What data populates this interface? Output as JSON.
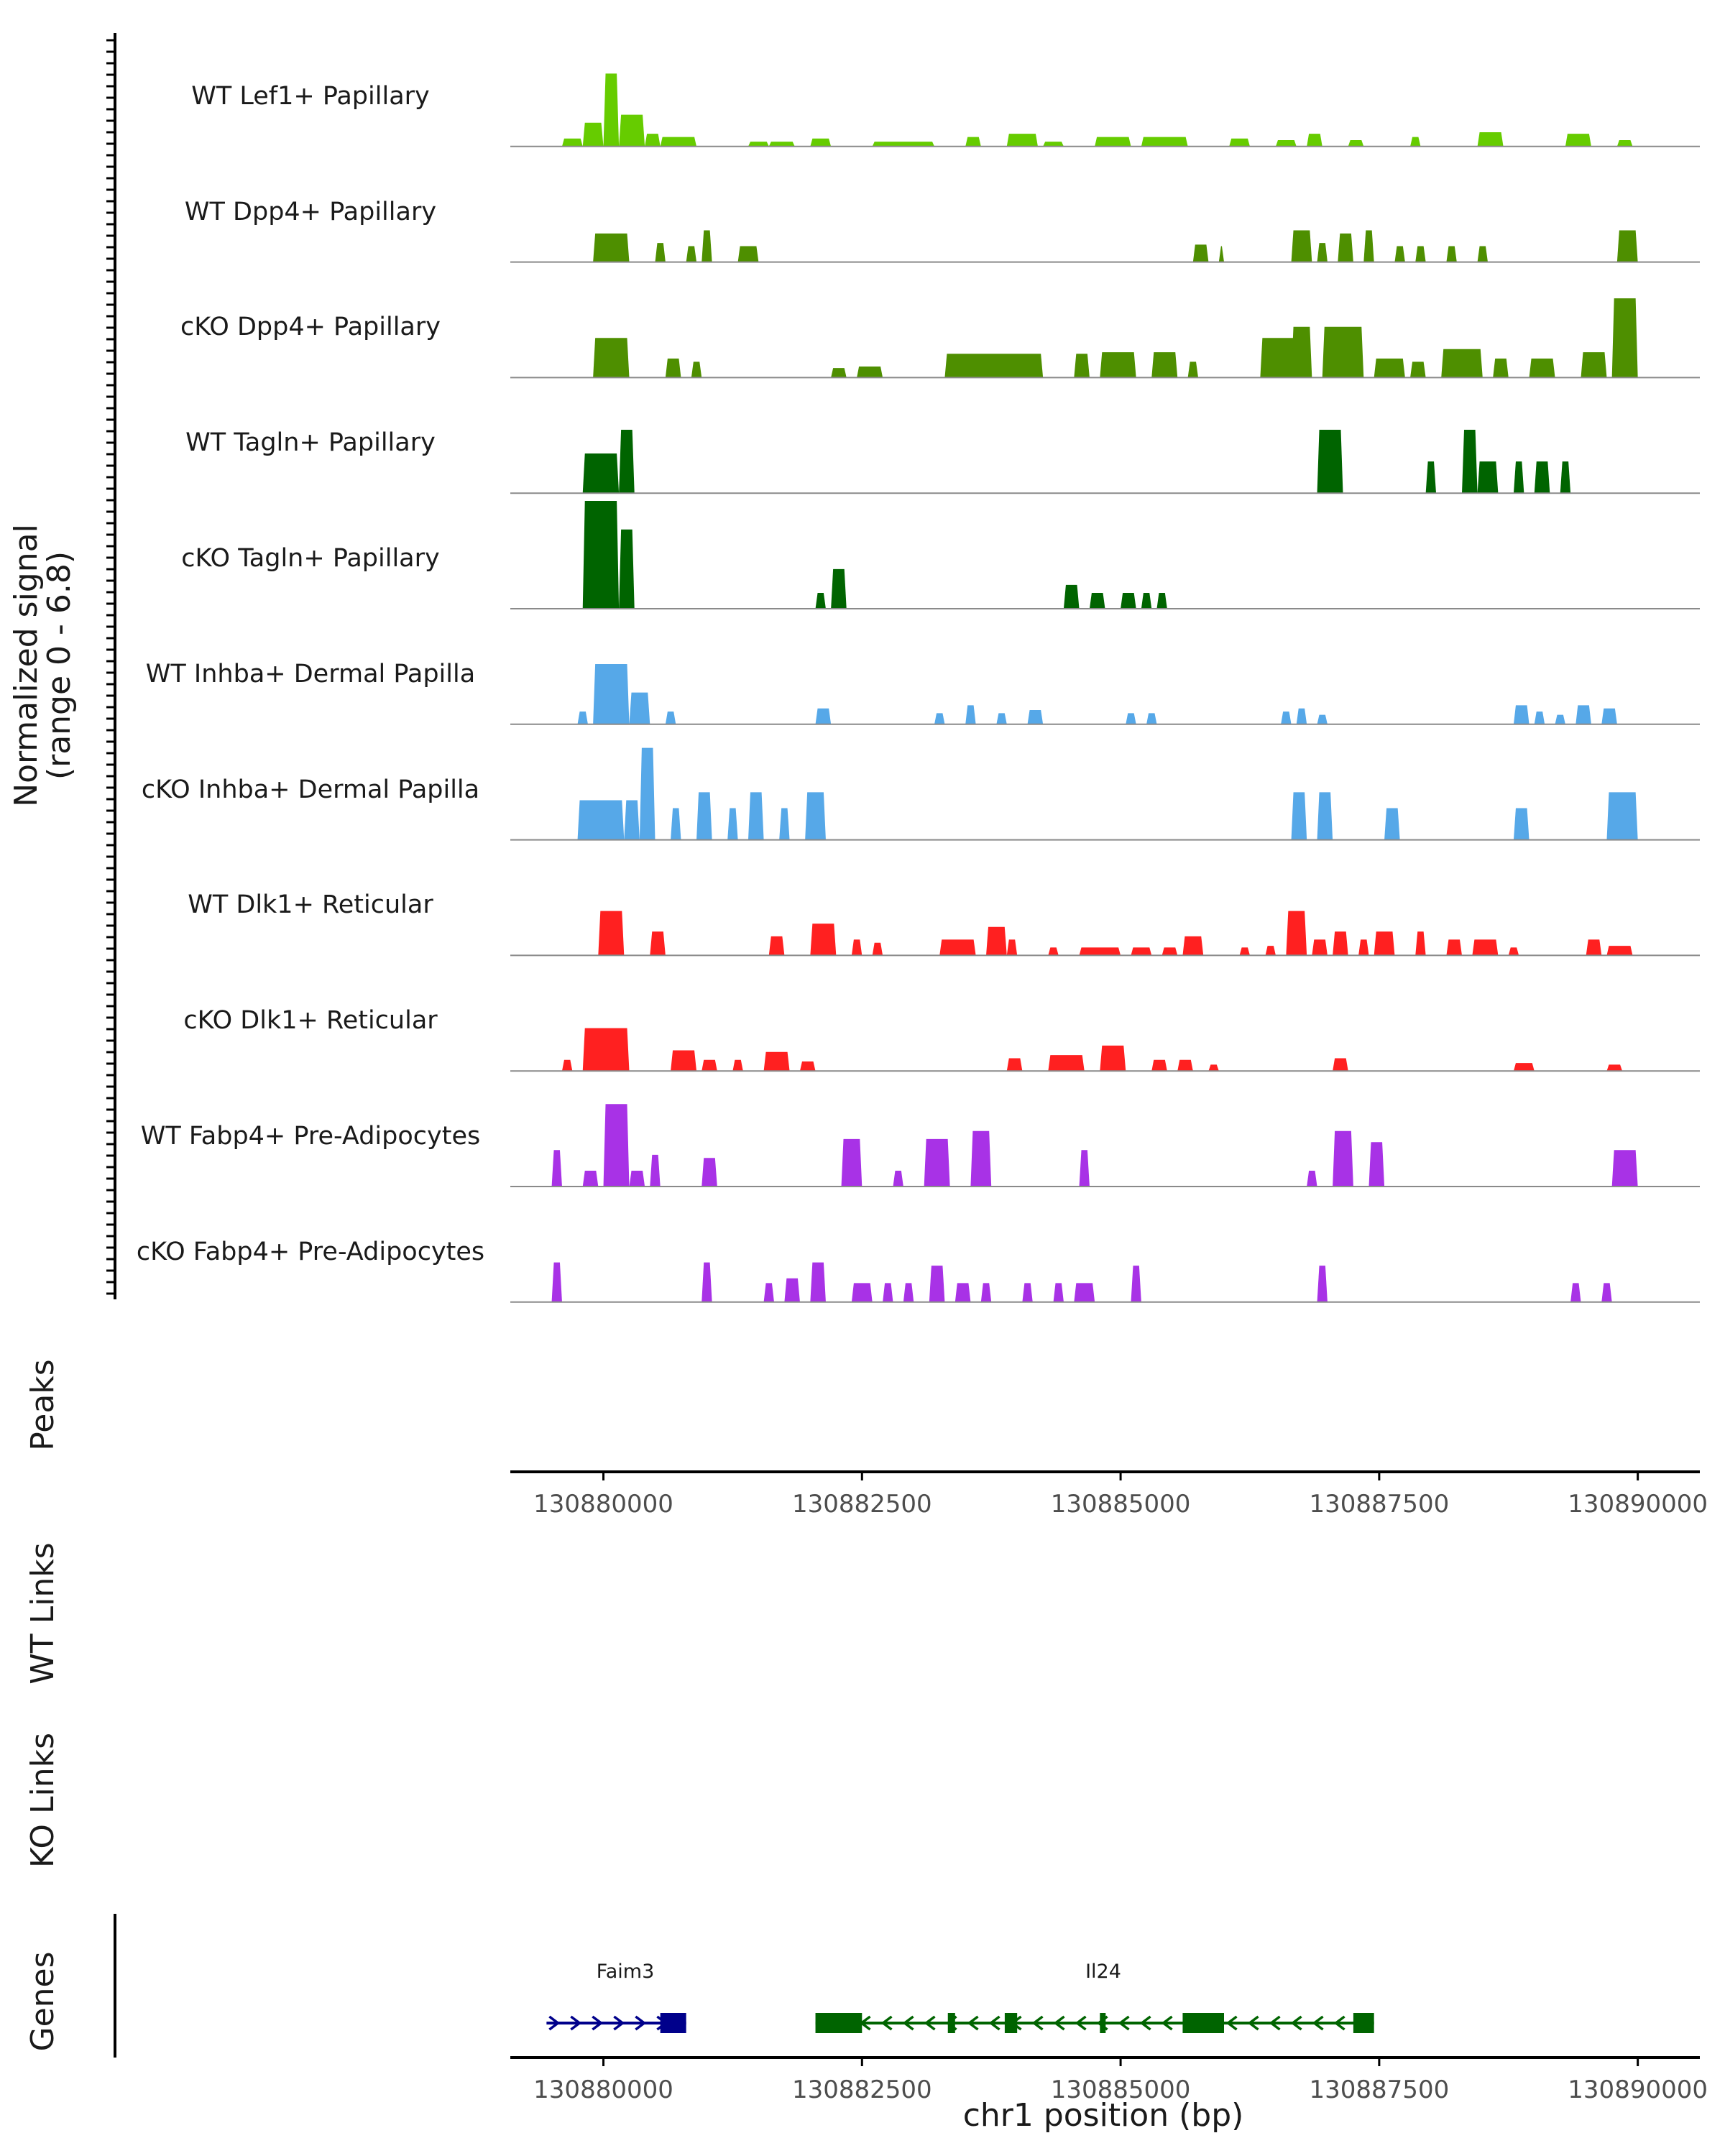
{
  "chart_data": {
    "type": "area",
    "title": "",
    "region": {
      "chrom": "chr1",
      "start": 130879100,
      "end": 130890600
    },
    "ylabel": "Normalized signal",
    "ylabel_range": "(range 0 - 6.8)",
    "ylim": [
      0,
      6.8
    ],
    "xlabel": "chr1 position (bp)",
    "x_ticks": [
      {
        "value": 130880000,
        "label": "130880000"
      },
      {
        "value": 130882500,
        "label": "130882500"
      },
      {
        "value": 130885000,
        "label": "130885000"
      },
      {
        "value": 130887500,
        "label": "130887500"
      },
      {
        "value": 130890000,
        "label": "130890000"
      }
    ],
    "tracks": [
      {
        "name": "WT Lef1+ Papillary",
        "color": "#66CC00",
        "segments": [
          [
            130879600,
            130879800,
            0.5
          ],
          [
            130879800,
            130880000,
            1.5
          ],
          [
            130880000,
            130880150,
            4.6
          ],
          [
            130880150,
            130880400,
            2.0
          ],
          [
            130880400,
            130880550,
            0.8
          ],
          [
            130880550,
            130880900,
            0.6
          ],
          [
            130881400,
            130881600,
            0.3
          ],
          [
            130881600,
            130881850,
            0.3
          ],
          [
            130882000,
            130882200,
            0.5
          ],
          [
            130882600,
            130883200,
            0.3
          ],
          [
            130883500,
            130883650,
            0.6
          ],
          [
            130883900,
            130884200,
            0.8
          ],
          [
            130884250,
            130884450,
            0.3
          ],
          [
            130884750,
            130885100,
            0.6
          ],
          [
            130885200,
            130885650,
            0.6
          ],
          [
            130886050,
            130886250,
            0.5
          ],
          [
            130886500,
            130886700,
            0.4
          ],
          [
            130886800,
            130886950,
            0.8
          ],
          [
            130887200,
            130887350,
            0.4
          ],
          [
            130887800,
            130887900,
            0.6
          ],
          [
            130888450,
            130888700,
            0.9
          ],
          [
            130889300,
            130889550,
            0.8
          ],
          [
            130889800,
            130889950,
            0.4
          ]
        ]
      },
      {
        "name": "WT Dpp4+ Papillary",
        "color": "#4E8F00",
        "segments": [
          [
            130879900,
            130880250,
            1.8
          ],
          [
            130880500,
            130880600,
            1.2
          ],
          [
            130880800,
            130880900,
            1.0
          ],
          [
            130880950,
            130881050,
            2.0
          ],
          [
            130881300,
            130881500,
            1.0
          ],
          [
            130885700,
            130885850,
            1.1
          ],
          [
            130885950,
            130886000,
            1.0
          ],
          [
            130886650,
            130886850,
            2.0
          ],
          [
            130886900,
            130887000,
            1.2
          ],
          [
            130887100,
            130887250,
            1.8
          ],
          [
            130887350,
            130887450,
            2.0
          ],
          [
            130887650,
            130887750,
            1.0
          ],
          [
            130887850,
            130887950,
            1.0
          ],
          [
            130888150,
            130888250,
            1.0
          ],
          [
            130888450,
            130888550,
            1.0
          ],
          [
            130889800,
            130890000,
            2.0
          ]
        ]
      },
      {
        "name": "cKO Dpp4+ Papillary",
        "color": "#4E8F00",
        "segments": [
          [
            130879900,
            130880250,
            2.5
          ],
          [
            130880600,
            130880750,
            1.2
          ],
          [
            130880850,
            130880950,
            1.0
          ],
          [
            130882200,
            130882350,
            0.6
          ],
          [
            130882450,
            130882700,
            0.7
          ],
          [
            130883300,
            130884250,
            1.5
          ],
          [
            130884550,
            130884700,
            1.5
          ],
          [
            130884800,
            130885150,
            1.6
          ],
          [
            130885300,
            130885550,
            1.6
          ],
          [
            130885650,
            130885750,
            1.0
          ],
          [
            130886350,
            130886700,
            2.5
          ],
          [
            130886650,
            130886850,
            3.2
          ],
          [
            130886950,
            130887350,
            3.2
          ],
          [
            130887450,
            130887750,
            1.2
          ],
          [
            130887800,
            130887950,
            1.0
          ],
          [
            130888100,
            130888500,
            1.8
          ],
          [
            130888600,
            130888750,
            1.2
          ],
          [
            130888950,
            130889200,
            1.2
          ],
          [
            130889450,
            130889700,
            1.6
          ],
          [
            130889750,
            130890000,
            5.0
          ]
        ]
      },
      {
        "name": "WT Tagln+ Papillary",
        "color": "#006400",
        "segments": [
          [
            130879800,
            130880150,
            2.5
          ],
          [
            130880150,
            130880300,
            4.0
          ],
          [
            130886900,
            130887150,
            4.0
          ],
          [
            130887950,
            130888050,
            2.0
          ],
          [
            130888300,
            130888450,
            4.0
          ],
          [
            130888450,
            130888650,
            2.0
          ],
          [
            130888800,
            130888900,
            2.0
          ],
          [
            130889000,
            130889150,
            2.0
          ],
          [
            130889250,
            130889350,
            2.0
          ]
        ]
      },
      {
        "name": "cKO Tagln+ Papillary",
        "color": "#006400",
        "segments": [
          [
            130879800,
            130880150,
            6.8
          ],
          [
            130880150,
            130880300,
            5.0
          ],
          [
            130882050,
            130882150,
            1.0
          ],
          [
            130882200,
            130882350,
            2.5
          ],
          [
            130884450,
            130884600,
            1.5
          ],
          [
            130884700,
            130884850,
            1.0
          ],
          [
            130885000,
            130885150,
            1.0
          ],
          [
            130885200,
            130885300,
            1.0
          ],
          [
            130885350,
            130885450,
            1.0
          ]
        ]
      },
      {
        "name": "WT Inhba+ Dermal Papilla",
        "color": "#56A8E8",
        "segments": [
          [
            130879750,
            130879850,
            0.8
          ],
          [
            130879900,
            130880250,
            3.8
          ],
          [
            130880250,
            130880450,
            2.0
          ],
          [
            130880600,
            130880700,
            0.8
          ],
          [
            130882050,
            130882200,
            1.0
          ],
          [
            130883200,
            130883300,
            0.7
          ],
          [
            130883500,
            130883600,
            1.2
          ],
          [
            130883800,
            130883900,
            0.7
          ],
          [
            130884100,
            130884250,
            0.9
          ],
          [
            130885050,
            130885150,
            0.7
          ],
          [
            130885250,
            130885350,
            0.7
          ],
          [
            130886550,
            130886650,
            0.8
          ],
          [
            130886700,
            130886800,
            1.0
          ],
          [
            130886900,
            130887000,
            0.6
          ],
          [
            130888800,
            130888950,
            1.2
          ],
          [
            130889000,
            130889100,
            0.8
          ],
          [
            130889200,
            130889300,
            0.6
          ],
          [
            130889400,
            130889550,
            1.2
          ],
          [
            130889650,
            130889800,
            1.0
          ]
        ]
      },
      {
        "name": "cKO Inhba+ Dermal Papilla",
        "color": "#56A8E8",
        "segments": [
          [
            130879750,
            130880200,
            2.5
          ],
          [
            130880200,
            130880350,
            2.5
          ],
          [
            130880350,
            130880500,
            5.8
          ],
          [
            130880650,
            130880750,
            2.0
          ],
          [
            130880900,
            130881050,
            3.0
          ],
          [
            130881200,
            130881300,
            2.0
          ],
          [
            130881400,
            130881550,
            3.0
          ],
          [
            130881700,
            130881800,
            2.0
          ],
          [
            130881950,
            130882150,
            3.0
          ],
          [
            130886650,
            130886800,
            3.0
          ],
          [
            130886900,
            130887050,
            3.0
          ],
          [
            130887550,
            130887700,
            2.0
          ],
          [
            130888800,
            130888950,
            2.0
          ],
          [
            130889700,
            130890000,
            3.0
          ]
        ]
      },
      {
        "name": "WT Dlk1+ Reticular",
        "color": "#FF2020",
        "segments": [
          [
            130879950,
            130880200,
            2.8
          ],
          [
            130880450,
            130880600,
            1.5
          ],
          [
            130881600,
            130881750,
            1.2
          ],
          [
            130882000,
            130882250,
            2.0
          ],
          [
            130882400,
            130882500,
            1.0
          ],
          [
            130882600,
            130882700,
            0.8
          ],
          [
            130883250,
            130883600,
            1.0
          ],
          [
            130883700,
            130883900,
            1.8
          ],
          [
            130883900,
            130884000,
            1.0
          ],
          [
            130884300,
            130884400,
            0.5
          ],
          [
            130884600,
            130885000,
            0.5
          ],
          [
            130885100,
            130885300,
            0.5
          ],
          [
            130885400,
            130885550,
            0.5
          ],
          [
            130885600,
            130885800,
            1.2
          ],
          [
            130886150,
            130886250,
            0.5
          ],
          [
            130886400,
            130886500,
            0.6
          ],
          [
            130886600,
            130886800,
            2.8
          ],
          [
            130886850,
            130887000,
            1.0
          ],
          [
            130887050,
            130887200,
            1.5
          ],
          [
            130887300,
            130887400,
            1.0
          ],
          [
            130887450,
            130887650,
            1.5
          ],
          [
            130887850,
            130887950,
            1.5
          ],
          [
            130888150,
            130888300,
            1.0
          ],
          [
            130888400,
            130888650,
            1.0
          ],
          [
            130888750,
            130888850,
            0.5
          ],
          [
            130889500,
            130889650,
            1.0
          ],
          [
            130889700,
            130889950,
            0.6
          ]
        ]
      },
      {
        "name": "cKO Dlk1+ Reticular",
        "color": "#FF2020",
        "segments": [
          [
            130879600,
            130879700,
            0.7
          ],
          [
            130879800,
            130880250,
            2.7
          ],
          [
            130880650,
            130880900,
            1.3
          ],
          [
            130880950,
            130881100,
            0.7
          ],
          [
            130881250,
            130881350,
            0.7
          ],
          [
            130881550,
            130881800,
            1.2
          ],
          [
            130881900,
            130882050,
            0.6
          ],
          [
            130883900,
            130884050,
            0.8
          ],
          [
            130884300,
            130884650,
            1.0
          ],
          [
            130884800,
            130885050,
            1.6
          ],
          [
            130885300,
            130885450,
            0.7
          ],
          [
            130885550,
            130885700,
            0.7
          ],
          [
            130885850,
            130885950,
            0.4
          ],
          [
            130887050,
            130887200,
            0.8
          ],
          [
            130888800,
            130889000,
            0.5
          ],
          [
            130889700,
            130889850,
            0.4
          ]
        ]
      },
      {
        "name": "WT Fabp4+ Pre-Adipocytes",
        "color": "#A832E6",
        "segments": [
          [
            130879500,
            130879600,
            2.3
          ],
          [
            130879800,
            130879950,
            1.0
          ],
          [
            130880000,
            130880250,
            5.2
          ],
          [
            130880250,
            130880400,
            1.0
          ],
          [
            130880450,
            130880550,
            2.0
          ],
          [
            130880950,
            130881100,
            1.8
          ],
          [
            130882300,
            130882500,
            3.0
          ],
          [
            130882800,
            130882900,
            1.0
          ],
          [
            130883100,
            130883350,
            3.0
          ],
          [
            130883550,
            130883750,
            3.5
          ],
          [
            130884600,
            130884700,
            2.3
          ],
          [
            130886800,
            130886900,
            1.0
          ],
          [
            130887050,
            130887250,
            3.5
          ],
          [
            130887400,
            130887550,
            2.8
          ],
          [
            130889750,
            130890000,
            2.3
          ]
        ]
      },
      {
        "name": "cKO Fabp4+ Pre-Adipocytes",
        "color": "#A832E6",
        "segments": [
          [
            130879500,
            130879600,
            2.5
          ],
          [
            130880950,
            130881050,
            2.5
          ],
          [
            130881550,
            130881650,
            1.2
          ],
          [
            130881750,
            130881900,
            1.5
          ],
          [
            130882000,
            130882150,
            2.5
          ],
          [
            130882400,
            130882600,
            1.2
          ],
          [
            130882700,
            130882800,
            1.2
          ],
          [
            130882900,
            130883000,
            1.2
          ],
          [
            130883150,
            130883300,
            2.3
          ],
          [
            130883400,
            130883550,
            1.2
          ],
          [
            130883650,
            130883750,
            1.2
          ],
          [
            130884050,
            130884150,
            1.2
          ],
          [
            130884350,
            130884450,
            1.2
          ],
          [
            130884550,
            130884750,
            1.2
          ],
          [
            130885100,
            130885200,
            2.3
          ],
          [
            130886900,
            130887000,
            2.3
          ],
          [
            130889350,
            130889450,
            1.2
          ],
          [
            130889650,
            130889750,
            1.2
          ]
        ]
      }
    ],
    "peaks_label": "Peaks",
    "wt_links_label": "WT Links",
    "ko_links_label": "KO Links",
    "genes_label": "Genes",
    "genes": [
      {
        "name": "Faim3",
        "strand": "+",
        "color": "#00008B",
        "start": 130879450,
        "end": 130880800,
        "exons": [
          [
            130880550,
            130880800
          ]
        ]
      },
      {
        "name": "Il24",
        "strand": "-",
        "color": "#006400",
        "start": 130882050,
        "end": 130887450,
        "exons": [
          [
            130882050,
            130882500
          ],
          [
            130883330,
            130883400
          ],
          [
            130883880,
            130884000
          ],
          [
            130884800,
            130884850
          ],
          [
            130885600,
            130886000
          ],
          [
            130887250,
            130887450
          ]
        ]
      }
    ]
  }
}
